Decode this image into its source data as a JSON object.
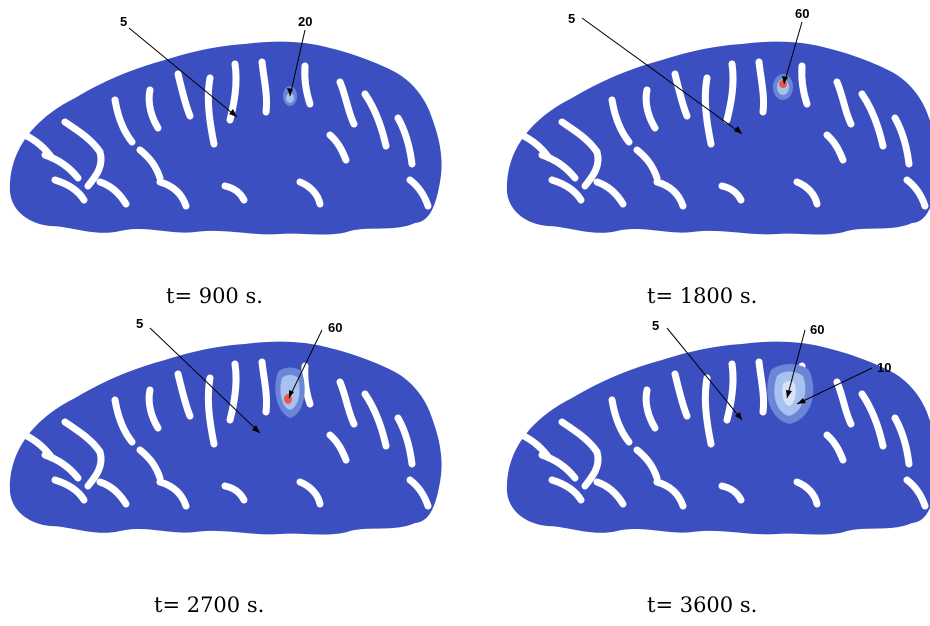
{
  "panels": [
    {
      "id": "p1",
      "caption": "t= 900 s.",
      "annotations": [
        "5",
        "20"
      ]
    },
    {
      "id": "p2",
      "caption": "t= 1800 s.",
      "annotations": [
        "5",
        "60"
      ]
    },
    {
      "id": "p3",
      "caption": "t= 2700 s.",
      "annotations": [
        "5",
        "60"
      ]
    },
    {
      "id": "p4",
      "caption": "t= 3600 s.",
      "annotations": [
        "5",
        "60",
        "10"
      ]
    }
  ],
  "colors": {
    "tissue": "#3b4fc0",
    "sulci": "#ffffff",
    "gradient_low": "#6b86d6",
    "gradient_mid": "#a9c1ee",
    "gradient_hot": "#e8584a"
  }
}
